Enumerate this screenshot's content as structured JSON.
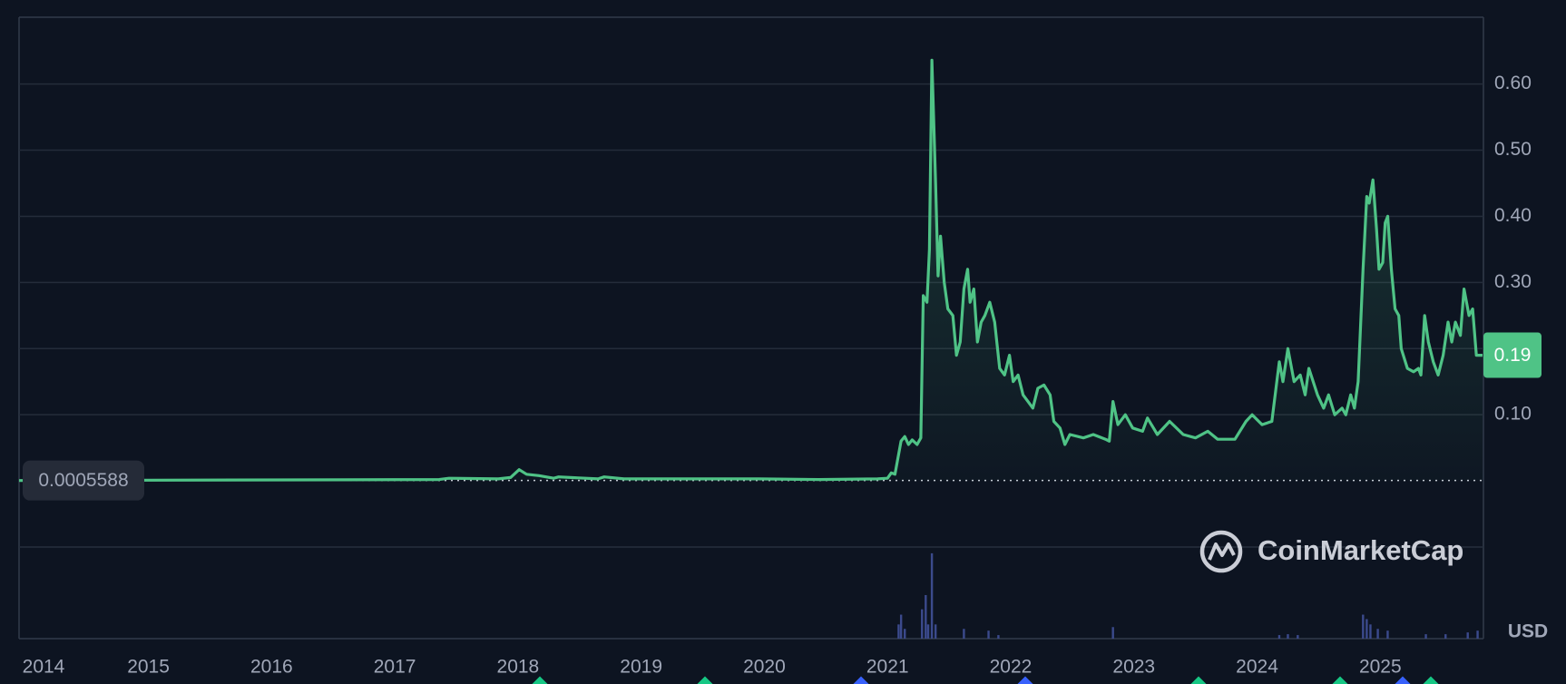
{
  "chart_data": {
    "type": "line",
    "color": "#4fc386",
    "currency": "USD",
    "watermark": "CoinMarketCap",
    "start_price": 0.0005588,
    "last_price": 0.19,
    "xlim": [
      2013.95,
      2025.83
    ],
    "xticks": [
      2014,
      2015,
      2016,
      2017,
      2018,
      2019,
      2020,
      2021,
      2022,
      2023,
      2024,
      2025
    ],
    "ylim": [
      -0.1,
      0.7
    ],
    "yticks": [
      {
        "value": 0.1,
        "label": "0.10"
      },
      {
        "value": 0.2,
        "label": "0.20"
      },
      {
        "value": 0.3,
        "label": "0.30"
      },
      {
        "value": 0.4,
        "label": "0.40"
      },
      {
        "value": 0.5,
        "label": "0.50"
      },
      {
        "value": 0.6,
        "label": "0.60"
      }
    ],
    "grid": true,
    "x": [
      2013.95,
      2017.36,
      2017.44,
      2017.84,
      2017.94,
      2018.01,
      2018.07,
      2018.17,
      2018.29,
      2018.33,
      2018.65,
      2018.7,
      2018.86,
      2019.47,
      2019.95,
      2020.44,
      2020.92,
      2021.0,
      2021.03,
      2021.06,
      2021.11,
      2021.14,
      2021.17,
      2021.2,
      2021.24,
      2021.27,
      2021.29,
      2021.32,
      2021.34,
      2021.36,
      2021.39,
      2021.41,
      2021.43,
      2021.46,
      2021.49,
      2021.53,
      2021.56,
      2021.59,
      2021.62,
      2021.65,
      2021.67,
      2021.7,
      2021.73,
      2021.76,
      2021.79,
      2021.83,
      2021.87,
      2021.91,
      2021.95,
      2021.99,
      2022.02,
      2022.06,
      2022.1,
      2022.14,
      2022.18,
      2022.22,
      2022.27,
      2022.32,
      2022.35,
      2022.4,
      2022.44,
      2022.48,
      2022.59,
      2022.67,
      2022.77,
      2022.8,
      2022.83,
      2022.87,
      2022.93,
      2022.99,
      2023.07,
      2023.11,
      2023.19,
      2023.29,
      2023.4,
      2023.5,
      2023.6,
      2023.68,
      2023.82,
      2023.91,
      2023.96,
      2024.04,
      2024.12,
      2024.18,
      2024.21,
      2024.25,
      2024.3,
      2024.35,
      2024.39,
      2024.42,
      2024.49,
      2024.54,
      2024.58,
      2024.63,
      2024.69,
      2024.72,
      2024.76,
      2024.79,
      2024.82,
      2024.86,
      2024.89,
      2024.91,
      2024.94,
      2024.97,
      2024.99,
      2025.02,
      2025.04,
      2025.06,
      2025.09,
      2025.12,
      2025.15,
      2025.17,
      2025.22,
      2025.27,
      2025.31,
      2025.33,
      2025.36,
      2025.39,
      2025.43,
      2025.47,
      2025.51,
      2025.55,
      2025.58,
      2025.61,
      2025.65,
      2025.68,
      2025.72,
      2025.75,
      2025.78,
      2025.83
    ],
    "values": [
      0.0005,
      0.002,
      0.004,
      0.003,
      0.005,
      0.017,
      0.01,
      0.008,
      0.004,
      0.006,
      0.003,
      0.006,
      0.003,
      0.003,
      0.003,
      0.002,
      0.003,
      0.004,
      0.012,
      0.01,
      0.06,
      0.067,
      0.055,
      0.062,
      0.055,
      0.065,
      0.28,
      0.27,
      0.35,
      0.636,
      0.45,
      0.31,
      0.37,
      0.3,
      0.26,
      0.25,
      0.19,
      0.21,
      0.29,
      0.32,
      0.27,
      0.29,
      0.21,
      0.24,
      0.25,
      0.27,
      0.24,
      0.17,
      0.16,
      0.19,
      0.15,
      0.16,
      0.13,
      0.12,
      0.11,
      0.14,
      0.145,
      0.13,
      0.09,
      0.08,
      0.055,
      0.07,
      0.065,
      0.07,
      0.063,
      0.06,
      0.12,
      0.085,
      0.1,
      0.08,
      0.075,
      0.095,
      0.07,
      0.09,
      0.07,
      0.065,
      0.075,
      0.063,
      0.063,
      0.09,
      0.1,
      0.085,
      0.09,
      0.18,
      0.15,
      0.2,
      0.15,
      0.16,
      0.13,
      0.17,
      0.13,
      0.11,
      0.13,
      0.1,
      0.11,
      0.1,
      0.13,
      0.11,
      0.15,
      0.32,
      0.43,
      0.42,
      0.455,
      0.38,
      0.32,
      0.33,
      0.39,
      0.4,
      0.32,
      0.26,
      0.25,
      0.2,
      0.17,
      0.165,
      0.17,
      0.16,
      0.25,
      0.21,
      0.18,
      0.16,
      0.19,
      0.24,
      0.21,
      0.24,
      0.22,
      0.29,
      0.25,
      0.26,
      0.19,
      0.19
    ],
    "volume": {
      "color": "#3b4a8c",
      "ylim": [
        0,
        100
      ],
      "x": [
        2021.09,
        2021.11,
        2021.14,
        2021.28,
        2021.31,
        2021.33,
        2021.36,
        2021.39,
        2021.62,
        2021.82,
        2021.9,
        2022.83,
        2024.18,
        2024.25,
        2024.33,
        2024.86,
        2024.89,
        2024.92,
        2024.98,
        2025.06,
        2025.37,
        2025.53,
        2025.71,
        2025.79
      ],
      "values": [
        16,
        27,
        11,
        33,
        49,
        16,
        96,
        16,
        11,
        9,
        4,
        13,
        4,
        5,
        4,
        27,
        22,
        16,
        11,
        9,
        5,
        5,
        7,
        9
      ]
    }
  }
}
